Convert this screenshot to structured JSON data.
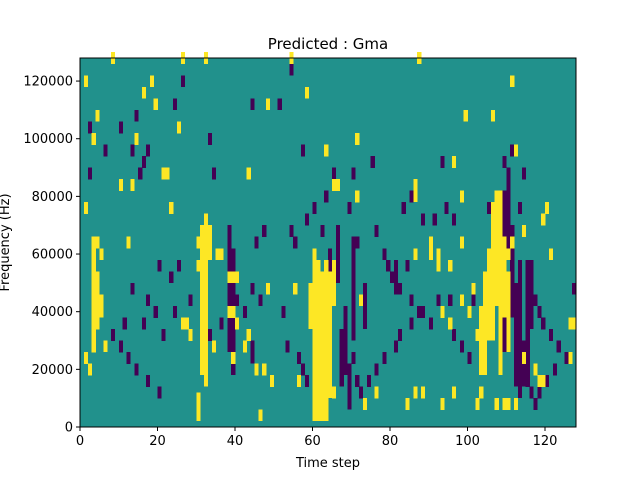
{
  "chart_data": {
    "type": "heatmap",
    "title": "Predicted : Gma",
    "xlabel": "Time step",
    "ylabel": "Frequency (Hz)",
    "xlim": [
      0,
      128
    ],
    "ylim": [
      0,
      128000
    ],
    "x_ticks": [
      0,
      20,
      40,
      60,
      80,
      100,
      120
    ],
    "y_ticks": [
      0,
      20000,
      40000,
      60000,
      80000,
      100000,
      120000
    ],
    "y_tick_labels": [
      "0",
      "20000",
      "40000",
      "60000",
      "80000",
      "100000",
      "120000"
    ],
    "grid": false,
    "colors": {
      "background": "#21918c",
      "high": "#fde725",
      "low": "#440154"
    },
    "cell_width": 1,
    "cell_height": 4000,
    "high_cells": [
      [
        8,
        126000
      ],
      [
        26,
        126000
      ],
      [
        32,
        126000
      ],
      [
        87,
        126000
      ],
      [
        54,
        126000
      ],
      [
        1,
        118000
      ],
      [
        18,
        118000
      ],
      [
        111,
        118000
      ],
      [
        16,
        114000
      ],
      [
        58,
        114000
      ],
      [
        19,
        110000
      ],
      [
        48,
        110000
      ],
      [
        4,
        106000
      ],
      [
        99,
        106000
      ],
      [
        106,
        106000
      ],
      [
        25,
        102000
      ],
      [
        3,
        98000
      ],
      [
        14,
        98000
      ],
      [
        71,
        98000
      ],
      [
        63,
        94000
      ],
      [
        112,
        94000
      ],
      [
        96,
        90000
      ],
      [
        22,
        86000
      ],
      [
        43,
        86000
      ],
      [
        13,
        82000
      ],
      [
        21,
        86000
      ],
      [
        10,
        82000
      ],
      [
        65,
        82000
      ],
      [
        66,
        82000
      ],
      [
        71,
        78000
      ],
      [
        98,
        78000
      ],
      [
        1,
        74000
      ],
      [
        23,
        74000
      ],
      [
        120,
        74000
      ],
      [
        119,
        70000
      ],
      [
        114,
        66000
      ],
      [
        4,
        62000
      ],
      [
        5,
        58000
      ],
      [
        12,
        62000
      ],
      [
        30,
        62000
      ],
      [
        33,
        62000
      ],
      [
        33,
        58000
      ],
      [
        35,
        58000
      ],
      [
        36,
        58000
      ],
      [
        4,
        50000
      ],
      [
        30,
        54000
      ],
      [
        32,
        54000
      ],
      [
        48,
        46000
      ],
      [
        55,
        46000
      ],
      [
        72,
        42000
      ],
      [
        101,
        46000
      ],
      [
        98,
        42000
      ],
      [
        103,
        38000
      ],
      [
        3,
        38000
      ],
      [
        3,
        34000
      ],
      [
        4,
        34000
      ],
      [
        26,
        34000
      ],
      [
        27,
        34000
      ],
      [
        28,
        30000
      ],
      [
        31,
        30000
      ],
      [
        38,
        38000
      ],
      [
        39,
        38000
      ],
      [
        40,
        34000
      ],
      [
        34,
        26000
      ],
      [
        39,
        22000
      ],
      [
        42,
        26000
      ],
      [
        43,
        30000
      ],
      [
        45,
        18000
      ],
      [
        47,
        18000
      ],
      [
        49,
        14000
      ],
      [
        56,
        14000
      ],
      [
        61,
        14000
      ],
      [
        63,
        10000
      ],
      [
        65,
        10000
      ],
      [
        73,
        6000
      ],
      [
        76,
        10000
      ],
      [
        84,
        6000
      ],
      [
        86,
        10000
      ],
      [
        88,
        10000
      ],
      [
        93,
        6000
      ],
      [
        96,
        10000
      ],
      [
        102,
        6000
      ],
      [
        103,
        10000
      ],
      [
        107,
        6000
      ],
      [
        109,
        6000
      ],
      [
        110,
        6000
      ],
      [
        112,
        6000
      ],
      [
        118,
        14000
      ],
      [
        119,
        14000
      ],
      [
        126,
        22000
      ],
      [
        126,
        34000
      ],
      [
        117,
        18000
      ],
      [
        93,
        38000
      ],
      [
        95,
        34000
      ],
      [
        100,
        38000
      ],
      [
        102,
        30000
      ],
      [
        106,
        34000
      ],
      [
        114,
        22000
      ],
      [
        1,
        22000
      ],
      [
        2,
        18000
      ],
      [
        3,
        26000
      ],
      [
        38,
        50000
      ],
      [
        39,
        50000
      ],
      [
        40,
        50000
      ],
      [
        86,
        58000
      ],
      [
        95,
        54000
      ],
      [
        98,
        62000
      ],
      [
        110,
        58000
      ],
      [
        111,
        62000
      ],
      [
        121,
        58000
      ],
      [
        127,
        34000
      ]
    ],
    "high_bands": [
      [
        3,
        30,
        66
      ],
      [
        4,
        34,
        50
      ],
      [
        5,
        38,
        46
      ],
      [
        6,
        26,
        30
      ],
      [
        30,
        2,
        12
      ],
      [
        31,
        18,
        70
      ],
      [
        32,
        14,
        74
      ],
      [
        33,
        62,
        70
      ],
      [
        36,
        58,
        62
      ],
      [
        46,
        2,
        6
      ],
      [
        59,
        34,
        50
      ],
      [
        60,
        2,
        62
      ],
      [
        61,
        2,
        58
      ],
      [
        62,
        2,
        54
      ],
      [
        63,
        2,
        58
      ],
      [
        64,
        10,
        54
      ],
      [
        65,
        42,
        58
      ],
      [
        86,
        78,
        86
      ],
      [
        90,
        58,
        66
      ],
      [
        92,
        54,
        62
      ],
      [
        103,
        18,
        42
      ],
      [
        104,
        18,
        54
      ],
      [
        105,
        30,
        62
      ],
      [
        106,
        30,
        78
      ],
      [
        107,
        42,
        82
      ],
      [
        108,
        18,
        82
      ],
      [
        109,
        38,
        66
      ],
      [
        110,
        26,
        54
      ]
    ],
    "low_cells": [
      [
        18,
        118000
      ],
      [
        24,
        110000
      ],
      [
        26,
        118000
      ],
      [
        44,
        110000
      ],
      [
        51,
        110000
      ],
      [
        54,
        122000
      ],
      [
        33,
        98000
      ],
      [
        2,
        102000
      ],
      [
        10,
        102000
      ],
      [
        14,
        106000
      ],
      [
        6,
        94000
      ],
      [
        13,
        94000
      ],
      [
        16,
        90000
      ],
      [
        17,
        94000
      ],
      [
        2,
        86000
      ],
      [
        15,
        86000
      ],
      [
        34,
        86000
      ],
      [
        57,
        94000
      ],
      [
        65,
        86000
      ],
      [
        70,
        86000
      ],
      [
        75,
        90000
      ],
      [
        93,
        90000
      ],
      [
        109,
        90000
      ],
      [
        111,
        94000
      ],
      [
        114,
        86000
      ],
      [
        113,
        74000
      ],
      [
        83,
        74000
      ],
      [
        85,
        78000
      ],
      [
        88,
        70000
      ],
      [
        91,
        70000
      ],
      [
        94,
        74000
      ],
      [
        96,
        70000
      ],
      [
        105,
        74000
      ],
      [
        107,
        70000
      ],
      [
        60,
        74000
      ],
      [
        58,
        70000
      ],
      [
        62,
        66000
      ],
      [
        45,
        62000
      ],
      [
        47,
        66000
      ],
      [
        54,
        66000
      ],
      [
        55,
        62000
      ],
      [
        63,
        78000
      ],
      [
        69,
        74000
      ],
      [
        71,
        62000
      ],
      [
        76,
        66000
      ],
      [
        78,
        58000
      ],
      [
        79,
        54000
      ],
      [
        84,
        54000
      ],
      [
        80,
        50000
      ],
      [
        82,
        46000
      ],
      [
        85,
        42000
      ],
      [
        88,
        38000
      ],
      [
        92,
        42000
      ],
      [
        95,
        42000
      ],
      [
        101,
        42000
      ],
      [
        20,
        54000
      ],
      [
        23,
        50000
      ],
      [
        25,
        54000
      ],
      [
        13,
        46000
      ],
      [
        17,
        42000
      ],
      [
        19,
        38000
      ],
      [
        24,
        38000
      ],
      [
        28,
        42000
      ],
      [
        16,
        34000
      ],
      [
        11,
        34000
      ],
      [
        8,
        30000
      ],
      [
        10,
        26000
      ],
      [
        12,
        22000
      ],
      [
        14,
        18000
      ],
      [
        17,
        14000
      ],
      [
        20,
        10000
      ],
      [
        21,
        30000
      ],
      [
        33,
        30000
      ],
      [
        36,
        34000
      ],
      [
        40,
        42000
      ],
      [
        42,
        38000
      ],
      [
        44,
        46000
      ],
      [
        46,
        42000
      ],
      [
        52,
        38000
      ],
      [
        53,
        26000
      ],
      [
        56,
        22000
      ],
      [
        57,
        18000
      ],
      [
        58,
        14000
      ],
      [
        64,
        14000
      ],
      [
        69,
        18000
      ],
      [
        70,
        22000
      ],
      [
        71,
        14000
      ],
      [
        72,
        10000
      ],
      [
        74,
        14000
      ],
      [
        76,
        18000
      ],
      [
        78,
        22000
      ],
      [
        81,
        26000
      ],
      [
        82,
        30000
      ],
      [
        85,
        34000
      ],
      [
        87,
        38000
      ],
      [
        90,
        34000
      ],
      [
        96,
        30000
      ],
      [
        98,
        26000
      ],
      [
        100,
        22000
      ],
      [
        117,
        42000
      ],
      [
        118,
        38000
      ],
      [
        119,
        34000
      ],
      [
        121,
        30000
      ],
      [
        123,
        26000
      ],
      [
        125,
        22000
      ],
      [
        127,
        46000
      ],
      [
        114,
        18000
      ],
      [
        115,
        14000
      ],
      [
        116,
        10000
      ],
      [
        117,
        6000
      ],
      [
        118,
        10000
      ],
      [
        120,
        14000
      ],
      [
        122,
        18000
      ]
    ],
    "low_bands": [
      [
        38,
        26,
        70
      ],
      [
        39,
        18,
        62
      ],
      [
        44,
        22,
        30
      ],
      [
        62,
        22,
        34
      ],
      [
        64,
        54,
        62
      ],
      [
        66,
        50,
        70
      ],
      [
        67,
        14,
        34
      ],
      [
        68,
        18,
        42
      ],
      [
        69,
        6,
        22
      ],
      [
        70,
        30,
        66
      ],
      [
        73,
        34,
        50
      ],
      [
        81,
        46,
        58
      ],
      [
        109,
        26,
        82
      ],
      [
        110,
        62,
        90
      ],
      [
        111,
        38,
        70
      ],
      [
        112,
        14,
        50
      ],
      [
        113,
        10,
        58
      ],
      [
        114,
        14,
        30
      ],
      [
        115,
        18,
        58
      ],
      [
        116,
        34,
        58
      ]
    ]
  }
}
